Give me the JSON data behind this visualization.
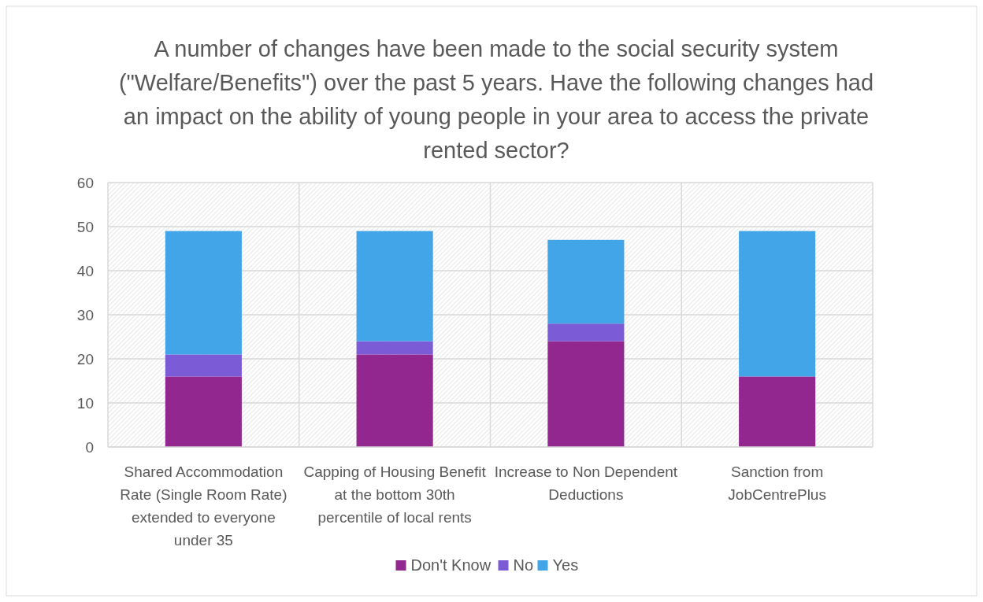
{
  "chart_data": {
    "type": "bar",
    "title": "A number of changes have been made to the social security system (\"Welfare/Benefits\") over the past 5 years. Have the following changes had an impact on the ability of young people in your area to access the private rented sector?",
    "categories": [
      "Shared Accommodation Rate (Single Room Rate) extended to everyone under 35",
      "Capping of Housing Benefit at the bottom 30th percentile of local rents",
      "Increase to Non Dependent Deductions",
      "Sanction from JobCentrePlus"
    ],
    "stacked": true,
    "series": [
      {
        "name": "Don't Know",
        "color": "#92278f",
        "values": [
          16,
          21,
          24,
          16
        ]
      },
      {
        "name": "No",
        "color": "#7b5bd6",
        "values": [
          5,
          3,
          4,
          0
        ]
      },
      {
        "name": "Yes",
        "color": "#42a5e8",
        "values": [
          28,
          25,
          19,
          33
        ]
      }
    ],
    "ylim": [
      0,
      60
    ],
    "yticks": [
      0,
      10,
      20,
      30,
      40,
      50,
      60
    ],
    "grid": true,
    "legend": "bottom"
  }
}
